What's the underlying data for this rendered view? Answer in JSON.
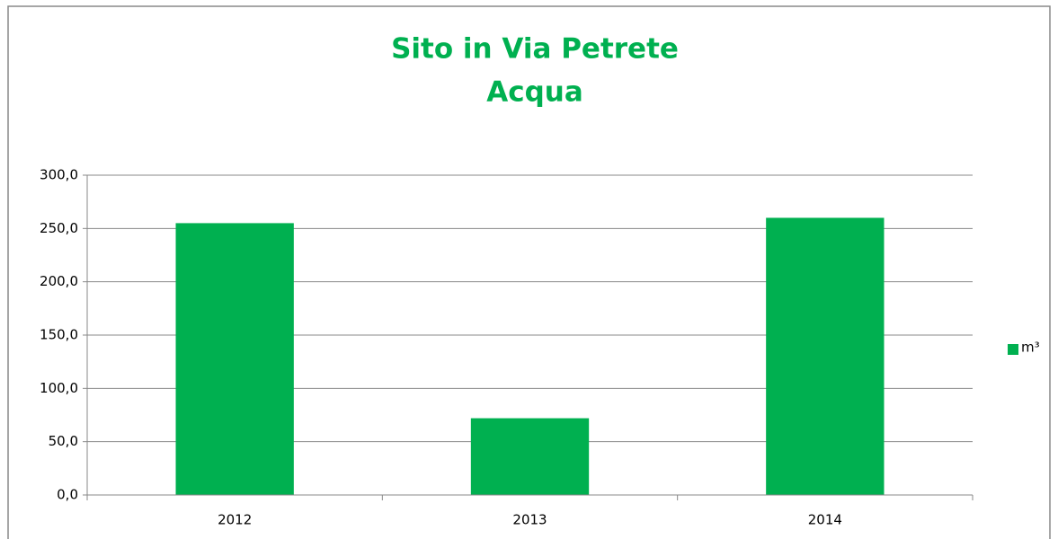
{
  "chart_data": {
    "type": "bar",
    "title": [
      "Sito in Via Petrete",
      "Acqua"
    ],
    "categories": [
      "2012",
      "2013",
      "2014"
    ],
    "series": [
      {
        "name": "m³",
        "color": "#00b050",
        "values": [
          255,
          72,
          260
        ]
      }
    ],
    "ylim": [
      0,
      300
    ],
    "yticks": [
      {
        "value": 0,
        "label": "0,0"
      },
      {
        "value": 50,
        "label": "50,0"
      },
      {
        "value": 100,
        "label": "100,0"
      },
      {
        "value": 150,
        "label": "150,0"
      },
      {
        "value": 200,
        "label": "200,0"
      },
      {
        "value": 250,
        "label": "250,0"
      },
      {
        "value": 300,
        "label": "300,0"
      }
    ],
    "grid": true,
    "legend": "right"
  }
}
